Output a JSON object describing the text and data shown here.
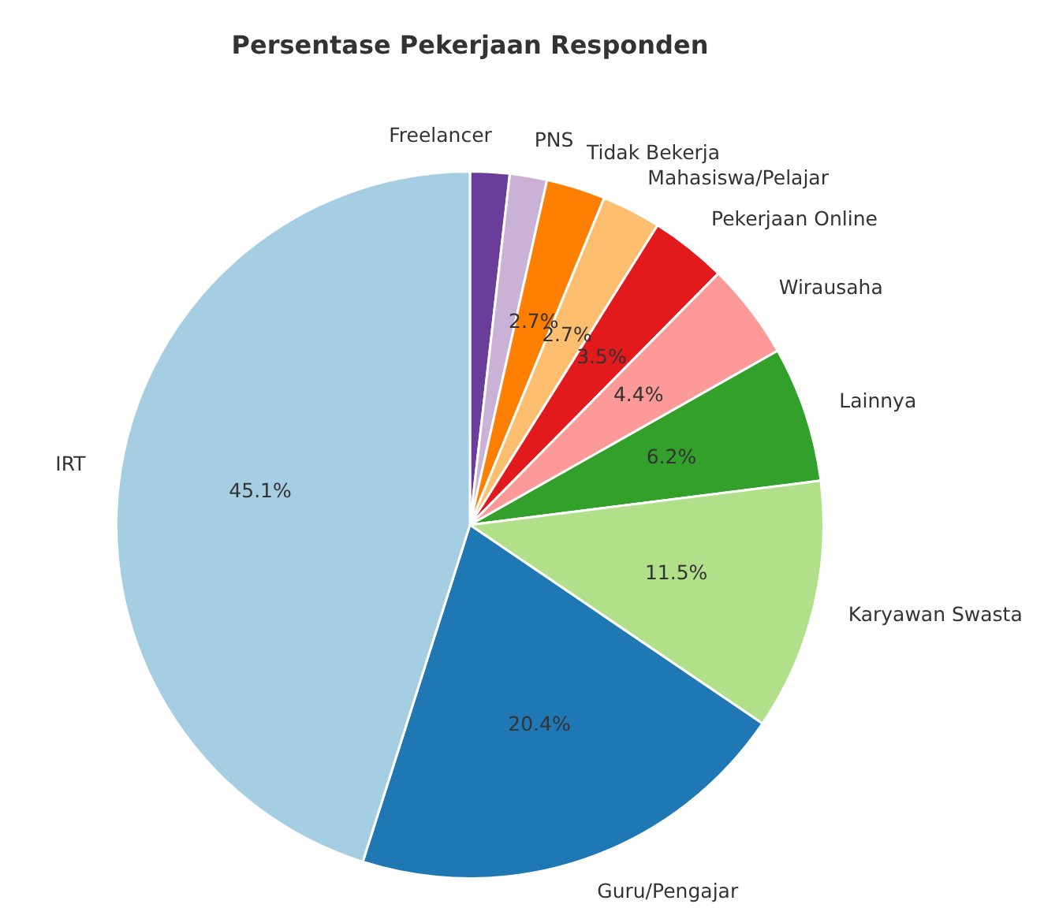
{
  "chart_data": {
    "type": "pie",
    "title": "Persentase Pekerjaan Responden",
    "categories": [
      "Freelancer",
      "PNS",
      "Tidak Bekerja",
      "Mahasiswa/Pelajar",
      "Pekerjaan Online",
      "Wirausaha",
      "Lainnya",
      "Karyawan Swasta",
      "Guru/Pengajar",
      "IRT"
    ],
    "values": [
      1.8,
      1.7,
      2.7,
      2.7,
      3.5,
      4.4,
      6.2,
      11.5,
      20.4,
      45.1
    ],
    "value_labels": [
      null,
      null,
      "2.7%",
      "2.7%",
      "3.5%",
      "4.4%",
      "6.2%",
      "11.5%",
      "20.4%",
      "45.1%"
    ],
    "colors": [
      "#6a3d9a",
      "#cab2d6",
      "#ff7f00",
      "#fdbf6f",
      "#e31a1c",
      "#fb9a99",
      "#33a02c",
      "#b2df8a",
      "#1f78b4",
      "#a6cee3"
    ],
    "legend": false
  }
}
